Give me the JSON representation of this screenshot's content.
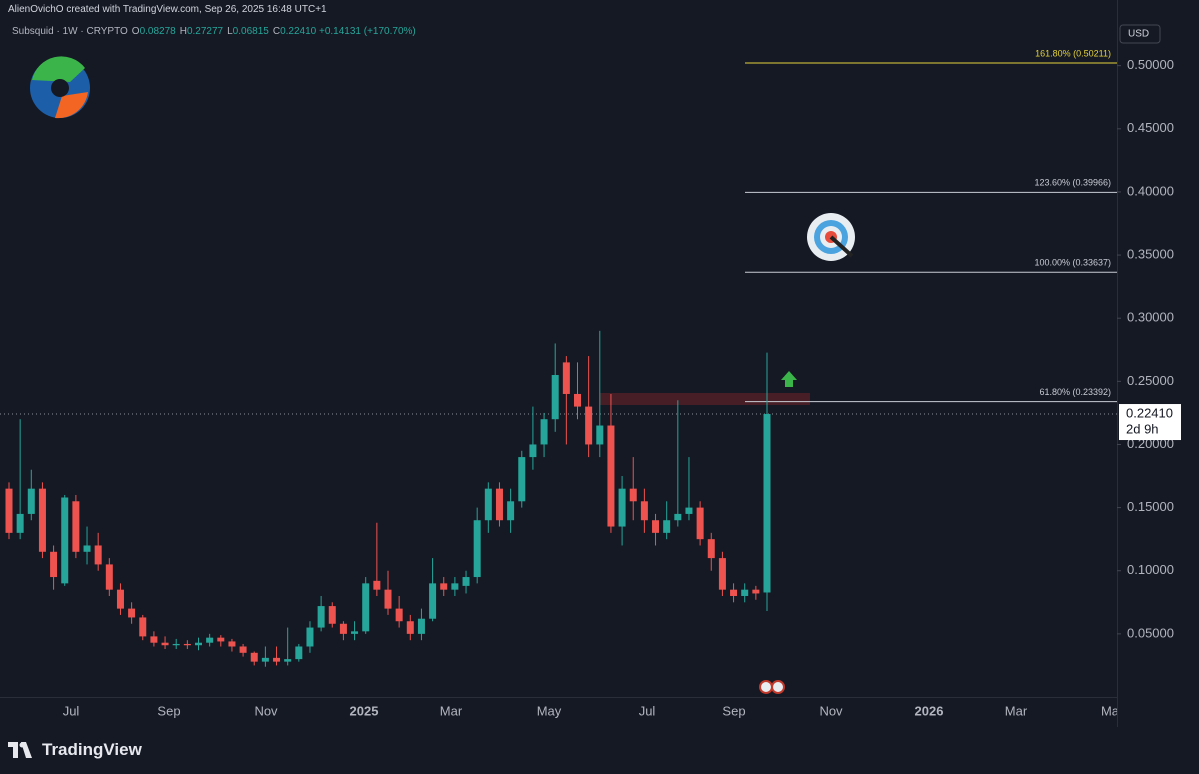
{
  "chart_data": {
    "type": "candlestick",
    "header": "AlienOvichO created with TradingView.com, Sep 26, 2025 16:48 UTC+1",
    "symbol": "Subsquid · 1W · CRYPTO",
    "ohlc_labels": [
      {
        "key": "O",
        "text": "0.08278"
      },
      {
        "key": "H",
        "text": "0.27277"
      },
      {
        "key": "L",
        "text": "0.06815"
      },
      {
        "key": "C",
        "text": "0.22410"
      }
    ],
    "change": "+0.14131 (+170.70%)",
    "currency": "USD",
    "brand": "TradingView",
    "up_color": "#26a69a",
    "down_color": "#ef5350",
    "open": [
      0.165,
      0.13,
      0.145,
      0.165,
      0.115,
      0.09,
      0.155,
      0.115,
      0.12,
      0.105,
      0.085,
      0.07,
      0.063,
      0.048,
      0.043,
      0.041,
      0.042,
      0.041,
      0.043,
      0.047,
      0.044,
      0.04,
      0.035,
      0.028,
      0.031,
      0.028,
      0.03,
      0.04,
      0.055,
      0.072,
      0.058,
      0.05,
      0.052,
      0.092,
      0.085,
      0.07,
      0.06,
      0.05,
      0.062,
      0.09,
      0.085,
      0.088,
      0.095,
      0.14,
      0.165,
      0.14,
      0.155,
      0.19,
      0.2,
      0.22,
      0.265,
      0.24,
      0.23,
      0.2,
      0.215,
      0.135,
      0.165,
      0.155,
      0.14,
      0.13,
      0.14,
      0.145,
      0.15,
      0.125,
      0.11,
      0.085,
      0.08,
      0.085,
      0.08278
    ],
    "high": [
      0.17,
      0.22,
      0.18,
      0.17,
      0.12,
      0.16,
      0.16,
      0.135,
      0.13,
      0.11,
      0.09,
      0.075,
      0.065,
      0.052,
      0.048,
      0.046,
      0.045,
      0.047,
      0.05,
      0.049,
      0.046,
      0.042,
      0.036,
      0.04,
      0.04,
      0.055,
      0.042,
      0.06,
      0.08,
      0.075,
      0.06,
      0.06,
      0.095,
      0.138,
      0.1,
      0.08,
      0.065,
      0.07,
      0.11,
      0.095,
      0.095,
      0.1,
      0.15,
      0.17,
      0.17,
      0.165,
      0.195,
      0.23,
      0.225,
      0.28,
      0.27,
      0.265,
      0.27,
      0.29,
      0.24,
      0.175,
      0.19,
      0.165,
      0.145,
      0.155,
      0.235,
      0.19,
      0.155,
      0.13,
      0.115,
      0.09,
      0.09,
      0.088,
      0.27277
    ],
    "low": [
      0.125,
      0.125,
      0.14,
      0.11,
      0.085,
      0.088,
      0.11,
      0.105,
      0.1,
      0.08,
      0.065,
      0.058,
      0.045,
      0.04,
      0.038,
      0.038,
      0.038,
      0.037,
      0.04,
      0.04,
      0.036,
      0.032,
      0.025,
      0.024,
      0.025,
      0.025,
      0.028,
      0.035,
      0.052,
      0.055,
      0.045,
      0.045,
      0.05,
      0.08,
      0.065,
      0.055,
      0.045,
      0.045,
      0.06,
      0.08,
      0.08,
      0.082,
      0.09,
      0.13,
      0.135,
      0.13,
      0.15,
      0.18,
      0.19,
      0.21,
      0.2,
      0.22,
      0.19,
      0.19,
      0.13,
      0.12,
      0.14,
      0.13,
      0.12,
      0.125,
      0.135,
      0.14,
      0.12,
      0.1,
      0.08,
      0.075,
      0.075,
      0.077,
      0.06815
    ],
    "close": [
      0.13,
      0.145,
      0.165,
      0.115,
      0.095,
      0.158,
      0.115,
      0.12,
      0.105,
      0.085,
      0.07,
      0.063,
      0.048,
      0.043,
      0.041,
      0.042,
      0.041,
      0.043,
      0.047,
      0.044,
      0.04,
      0.035,
      0.028,
      0.031,
      0.028,
      0.03,
      0.04,
      0.055,
      0.072,
      0.058,
      0.05,
      0.052,
      0.09,
      0.085,
      0.07,
      0.06,
      0.05,
      0.062,
      0.09,
      0.085,
      0.09,
      0.095,
      0.14,
      0.165,
      0.14,
      0.155,
      0.19,
      0.2,
      0.22,
      0.255,
      0.24,
      0.23,
      0.2,
      0.215,
      0.135,
      0.165,
      0.155,
      0.14,
      0.13,
      0.14,
      0.145,
      0.15,
      0.125,
      0.11,
      0.085,
      0.08,
      0.085,
      0.082,
      0.2241
    ],
    "x_labels": [
      "Jul",
      "Sep",
      "Nov",
      "2025",
      "Mar",
      "May",
      "Jul",
      "Sep",
      "Nov",
      "2026",
      "Mar",
      "Ma"
    ],
    "ylim": [
      0,
      0.552
    ],
    "yticks": [
      {
        "value": 0.05,
        "label": "0.05000"
      },
      {
        "value": 0.1,
        "label": "0.10000"
      },
      {
        "value": 0.15,
        "label": "0.15000"
      },
      {
        "value": 0.2,
        "label": "0.20000"
      },
      {
        "value": 0.25,
        "label": "0.25000"
      },
      {
        "value": 0.3,
        "label": "0.30000"
      },
      {
        "value": 0.35,
        "label": "0.35000"
      },
      {
        "value": 0.4,
        "label": "0.40000"
      },
      {
        "value": 0.45,
        "label": "0.45000"
      },
      {
        "value": 0.5,
        "label": "0.50000"
      }
    ],
    "fib_levels": [
      {
        "value": 0.50211,
        "label": "161.80% (0.50211)",
        "color": "#e3d23c"
      },
      {
        "value": 0.39966,
        "label": "123.60% (0.39966)",
        "color": "#c9ccd4"
      },
      {
        "value": 0.33637,
        "label": "100.00% (0.33637)",
        "color": "#c9ccd4"
      },
      {
        "value": 0.23392,
        "label": "61.80% (0.23392)",
        "color": "#c9ccd4"
      }
    ],
    "price_tag": {
      "value": 0.2241,
      "label": "0.22410",
      "countdown": "2d 9h"
    }
  }
}
